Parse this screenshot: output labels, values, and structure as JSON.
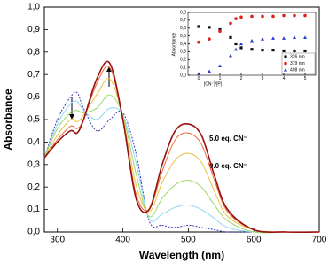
{
  "chart_data": [
    {
      "type": "line",
      "x_label": "Wavelength (nm)",
      "y_label": "Absorbance",
      "annotations": [
        "5.0 eq. CN⁻",
        "0.0 eq. CN⁻"
      ],
      "xlim": [
        280,
        700
      ],
      "xticks": [
        300,
        400,
        500,
        600,
        700
      ],
      "ylim": [
        0,
        1.0
      ],
      "yticks": [
        {
          "value": 0,
          "label": "0,0"
        },
        {
          "value": 0.1,
          "label": "0,1"
        },
        {
          "value": 0.2,
          "label": "0,2"
        },
        {
          "value": 0.3,
          "label": "0,3"
        },
        {
          "value": 0.4,
          "label": "0,4"
        },
        {
          "value": 0.5,
          "label": "0,5"
        },
        {
          "value": 0.6,
          "label": "0,6"
        },
        {
          "value": 0.7,
          "label": "0,7"
        },
        {
          "value": 0.8,
          "label": "0,8"
        },
        {
          "value": 0.9,
          "label": "0,9"
        },
        {
          "value": 1.0,
          "label": "1,0"
        }
      ],
      "x": [
        280,
        300,
        320,
        330,
        340,
        360,
        380,
        400,
        420,
        440,
        460,
        480,
        500,
        520,
        540,
        560,
        600,
        650,
        700
      ],
      "series": [
        {
          "color": "#3b3bb5",
          "dashed": true,
          "values": [
            0.33,
            0.5,
            0.6,
            0.62,
            0.55,
            0.45,
            0.5,
            0.53,
            0.35,
            0.05,
            0.03,
            0.02,
            0.03,
            0.02,
            0.01,
            0,
            0,
            0,
            0
          ]
        },
        {
          "color": "#8fd8f0",
          "values": [
            0.33,
            0.48,
            0.57,
            0.58,
            0.54,
            0.5,
            0.55,
            0.52,
            0.31,
            0.06,
            0.08,
            0.11,
            0.12,
            0.1,
            0.06,
            0.02,
            0,
            0,
            0
          ]
        },
        {
          "color": "#9bd86a",
          "values": [
            0.33,
            0.46,
            0.53,
            0.54,
            0.53,
            0.55,
            0.61,
            0.52,
            0.26,
            0.07,
            0.15,
            0.21,
            0.23,
            0.2,
            0.12,
            0.05,
            0,
            0,
            0
          ]
        },
        {
          "color": "#e8c040",
          "values": [
            0.33,
            0.43,
            0.5,
            0.49,
            0.52,
            0.61,
            0.68,
            0.51,
            0.21,
            0.09,
            0.22,
            0.32,
            0.35,
            0.31,
            0.18,
            0.07,
            0.01,
            0,
            0
          ]
        },
        {
          "color": "#e86a3a",
          "values": [
            0.33,
            0.41,
            0.47,
            0.46,
            0.5,
            0.66,
            0.73,
            0.5,
            0.17,
            0.1,
            0.27,
            0.41,
            0.44,
            0.39,
            0.23,
            0.09,
            0.01,
            0,
            0
          ]
        },
        {
          "color": "#9a1010",
          "values": [
            0.33,
            0.4,
            0.45,
            0.44,
            0.5,
            0.68,
            0.75,
            0.5,
            0.15,
            0.1,
            0.3,
            0.45,
            0.48,
            0.43,
            0.25,
            0.1,
            0.01,
            0,
            0
          ]
        }
      ]
    },
    {
      "type": "scatter",
      "x_label": "[CN⁻]/[P]",
      "y_label": "Absorbance",
      "xlim": [
        -0.5,
        5.5
      ],
      "xticks": [
        0,
        1,
        2,
        3,
        4,
        5
      ],
      "ylim": [
        0,
        0.8
      ],
      "yticks": [
        {
          "value": 0,
          "label": "0,0"
        },
        {
          "value": 0.1,
          "label": "0,1"
        },
        {
          "value": 0.2,
          "label": "0,2"
        },
        {
          "value": 0.3,
          "label": "0,3"
        },
        {
          "value": 0.4,
          "label": "0,4"
        },
        {
          "value": 0.5,
          "label": "0,5"
        },
        {
          "value": 0.6,
          "label": "0,6"
        },
        {
          "value": 0.7,
          "label": "0,7"
        },
        {
          "value": 0.8,
          "label": "0,8"
        }
      ],
      "x": [
        0,
        0.5,
        1,
        1.5,
        1.75,
        2,
        2.5,
        3,
        3.5,
        4,
        4.5,
        5
      ],
      "legend": "bottom-right",
      "series": [
        {
          "name": "326 nm",
          "color": "#111111",
          "marker": "square",
          "values": [
            0.62,
            0.61,
            0.58,
            0.48,
            0.4,
            0.35,
            0.33,
            0.32,
            0.32,
            0.31,
            0.31,
            0.31
          ]
        },
        {
          "name": "379 nm",
          "color": "#e02020",
          "marker": "circle",
          "values": [
            0.42,
            0.46,
            0.56,
            0.66,
            0.72,
            0.74,
            0.75,
            0.75,
            0.75,
            0.76,
            0.76,
            0.76
          ]
        },
        {
          "name": "498 nm",
          "color": "#2a3ad8",
          "marker": "triangle",
          "values": [
            0.02,
            0.05,
            0.12,
            0.25,
            0.33,
            0.4,
            0.44,
            0.46,
            0.47,
            0.47,
            0.48,
            0.48
          ]
        }
      ]
    }
  ]
}
